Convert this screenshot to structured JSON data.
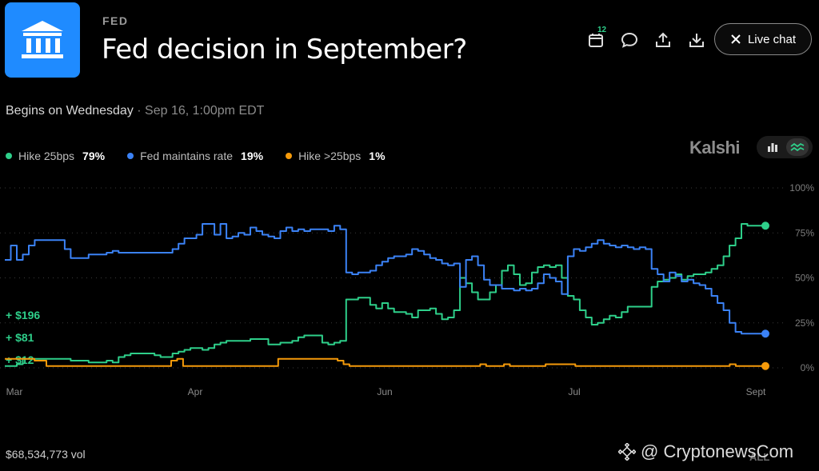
{
  "header": {
    "category": "FED",
    "title": "Fed decision in September?",
    "calendar_badge": "12",
    "live_chat_label": "Live chat",
    "icons": [
      "calendar-icon",
      "comment-icon",
      "share-icon",
      "download-icon",
      "close-icon"
    ]
  },
  "subtitle": {
    "begins": "Begins on Wednesday",
    "datetime": " · Sep 16, 1:00pm EDT"
  },
  "legend": [
    {
      "name": "Hike 25bps",
      "pct": "79%",
      "color": "#2ecf8a"
    },
    {
      "name": "Fed maintains rate",
      "pct": "19%",
      "color": "#3b82f6"
    },
    {
      "name": "Hike >25bps",
      "pct": "1%",
      "color": "#f59a0a"
    }
  ],
  "brand": "Kalshi",
  "gains": [
    "+ $196",
    "+ $81",
    "+ $12"
  ],
  "volume": "$68,534,773 vol",
  "watermark": "@ CryptonewsCom",
  "range_options": [
    "ALL"
  ],
  "chart_data": {
    "type": "line",
    "x_labels": [
      "Mar",
      "Apr",
      "Jun",
      "Jul",
      "Sept"
    ],
    "y_ticks": [
      "100%",
      "75%",
      "50%",
      "25%",
      "0%"
    ],
    "ylim": [
      0,
      100
    ],
    "grid": true,
    "series": [
      {
        "name": "Hike 25bps",
        "color": "#2ecf8a",
        "values": [
          1,
          1,
          2,
          5,
          5,
          5,
          5,
          5,
          5,
          5,
          5,
          4,
          4,
          4,
          3,
          3,
          3,
          4,
          3,
          6,
          7,
          8,
          8,
          8,
          8,
          7,
          6,
          6,
          8,
          9,
          10,
          11,
          11,
          10,
          11,
          13,
          14,
          15,
          15,
          15,
          15,
          16,
          16,
          16,
          13,
          13,
          14,
          14,
          15,
          17,
          18,
          18,
          18,
          14,
          13,
          14,
          15,
          38,
          38,
          39,
          39,
          35,
          33,
          36,
          33,
          31,
          31,
          30,
          28,
          32,
          32,
          33,
          30,
          27,
          28,
          32,
          50,
          47,
          42,
          38,
          38,
          42,
          46,
          54,
          57,
          52,
          46,
          47,
          53,
          56,
          57,
          56,
          57,
          50,
          40,
          38,
          32,
          28,
          24,
          25,
          27,
          29,
          28,
          31,
          34,
          34,
          34,
          34,
          45,
          48,
          49,
          50,
          52,
          49,
          51,
          52,
          52,
          53,
          55,
          57,
          62,
          68,
          72,
          80,
          79,
          79,
          79,
          79
        ]
      },
      {
        "name": "Fed maintains rate",
        "color": "#3b82f6",
        "values": [
          60,
          68,
          60,
          63,
          68,
          71,
          71,
          71,
          71,
          71,
          66,
          61,
          61,
          61,
          63,
          63,
          63,
          64,
          65,
          64,
          64,
          64,
          64,
          64,
          64,
          64,
          64,
          64,
          66,
          69,
          72,
          72,
          74,
          80,
          80,
          74,
          80,
          72,
          73,
          75,
          74,
          78,
          76,
          74,
          73,
          72,
          76,
          78,
          76,
          77,
          76,
          77,
          77,
          77,
          76,
          79,
          77,
          53,
          52,
          53,
          53,
          54,
          57,
          59,
          61,
          62,
          62,
          63,
          66,
          65,
          63,
          61,
          60,
          58,
          57,
          58,
          45,
          60,
          62,
          57,
          49,
          46,
          46,
          44,
          44,
          43,
          44,
          43,
          44,
          47,
          52,
          50,
          48,
          41,
          62,
          66,
          65,
          67,
          69,
          71,
          69,
          68,
          67,
          68,
          67,
          66,
          67,
          66,
          55,
          52,
          48,
          53,
          51,
          48,
          49,
          47,
          46,
          44,
          40,
          36,
          32,
          25,
          20,
          19,
          19,
          19,
          19,
          19
        ]
      },
      {
        "name": "Hike >25bps",
        "color": "#f59a0a",
        "values": [
          5,
          5,
          5,
          5,
          5,
          4,
          4,
          1,
          1,
          1,
          1,
          1,
          1,
          1,
          1,
          1,
          1,
          1,
          1,
          1,
          1,
          1,
          1,
          1,
          1,
          1,
          1,
          1,
          4,
          5,
          1,
          1,
          1,
          1,
          1,
          1,
          1,
          1,
          1,
          1,
          1,
          1,
          1,
          1,
          1,
          1,
          5,
          5,
          5,
          5,
          5,
          5,
          5,
          5,
          5,
          5,
          4,
          2,
          1,
          1,
          1,
          1,
          1,
          1,
          1,
          1,
          1,
          1,
          1,
          1,
          1,
          1,
          1,
          1,
          1,
          1,
          1,
          1,
          1,
          1,
          2,
          1,
          1,
          1,
          2,
          1,
          1,
          1,
          1,
          1,
          1,
          2,
          2,
          2,
          2,
          2,
          1,
          1,
          1,
          1,
          1,
          1,
          1,
          1,
          1,
          1,
          1,
          1,
          1,
          1,
          1,
          1,
          1,
          1,
          1,
          1,
          1,
          1,
          1,
          1,
          1,
          1,
          2,
          1,
          1,
          1,
          1,
          1,
          1
        ]
      }
    ]
  }
}
